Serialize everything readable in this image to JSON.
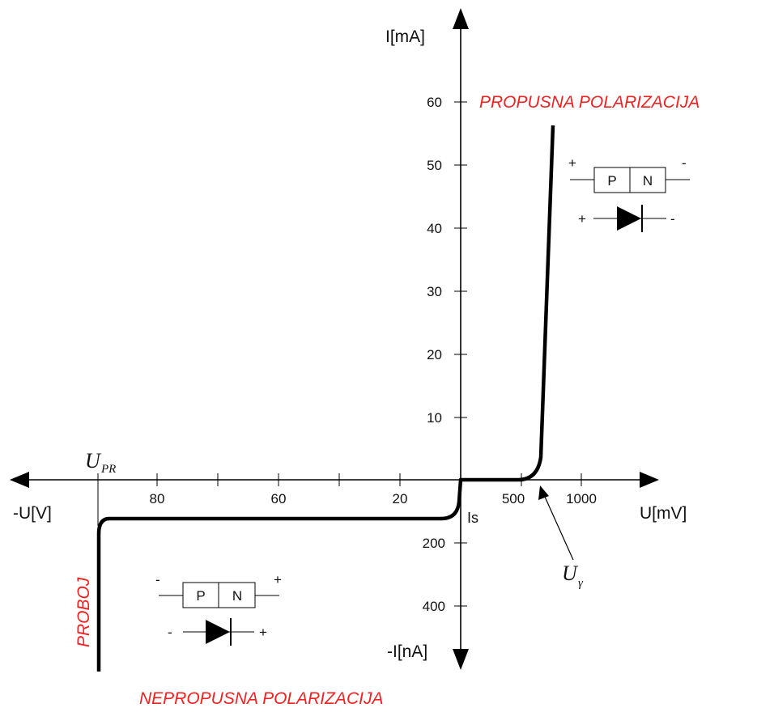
{
  "axes": {
    "y_pos_label": "I[mA]",
    "y_neg_label": "-I[nA]",
    "x_pos_label": "U[mV]",
    "x_neg_label": "-U[V]",
    "y_pos_ticks": [
      "10",
      "20",
      "30",
      "40",
      "50",
      "60"
    ],
    "y_neg_ticks": [
      "200",
      "400"
    ],
    "x_pos_ticks": [
      "500",
      "1000"
    ],
    "x_neg_ticks": [
      "20",
      "60",
      "80"
    ]
  },
  "labels": {
    "forward": "PROPUSNA POLARIZACIJA",
    "reverse": "NEPROPUSNA POLARIZACIJA",
    "breakdown": "PROBOJ",
    "saturation_current": "Is",
    "breakdown_voltage_main": "U",
    "breakdown_voltage_sub": "PR",
    "threshold_voltage_main": "U",
    "threshold_voltage_sub": "γ"
  },
  "forward_junction": {
    "p_label": "P",
    "n_label": "N",
    "left_sign": "+",
    "right_sign": "-",
    "diode_left_sign": "+",
    "diode_right_sign": "-"
  },
  "reverse_junction": {
    "p_label": "P",
    "n_label": "N",
    "left_sign": "-",
    "right_sign": "+",
    "diode_left_sign": "-",
    "diode_right_sign": "+"
  },
  "colors": {
    "region_text": "#ee2222",
    "curve": "#000000",
    "axis": "#000000"
  }
}
